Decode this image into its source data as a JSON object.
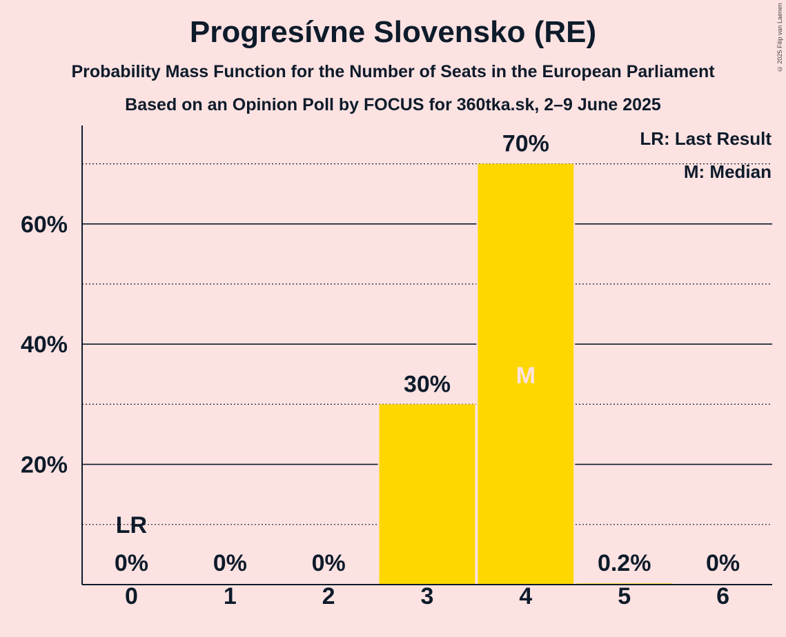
{
  "chart_data": {
    "type": "bar",
    "title": "Progresívne Slovensko (RE)",
    "subtitle": "Probability Mass Function for the Number of Seats in the European Parliament",
    "subtitle2": "Based on an Opinion Poll by FOCUS for 360tka.sk, 2–9 June 2025",
    "categories": [
      "0",
      "1",
      "2",
      "3",
      "4",
      "5",
      "6"
    ],
    "values": [
      0,
      0,
      0,
      30,
      70,
      0.2,
      0
    ],
    "value_labels": [
      "0%",
      "0%",
      "0%",
      "30%",
      "70%",
      "0.2%",
      "0%"
    ],
    "ylim": [
      0,
      76
    ],
    "y_ticks_major": [
      20,
      40,
      60
    ],
    "y_tick_labels": [
      "20%",
      "40%",
      "60%"
    ],
    "y_ticks_minor": [
      10,
      30,
      50,
      70
    ],
    "last_result_index": 0,
    "last_result_label": "LR",
    "median_index": 4,
    "median_label": "M",
    "legend": [
      "LR: Last Result",
      "M: Median"
    ],
    "legend_position": "top-right",
    "bar_color": "#ffd700",
    "copyright": "© 2025 Filip van Laenen"
  }
}
